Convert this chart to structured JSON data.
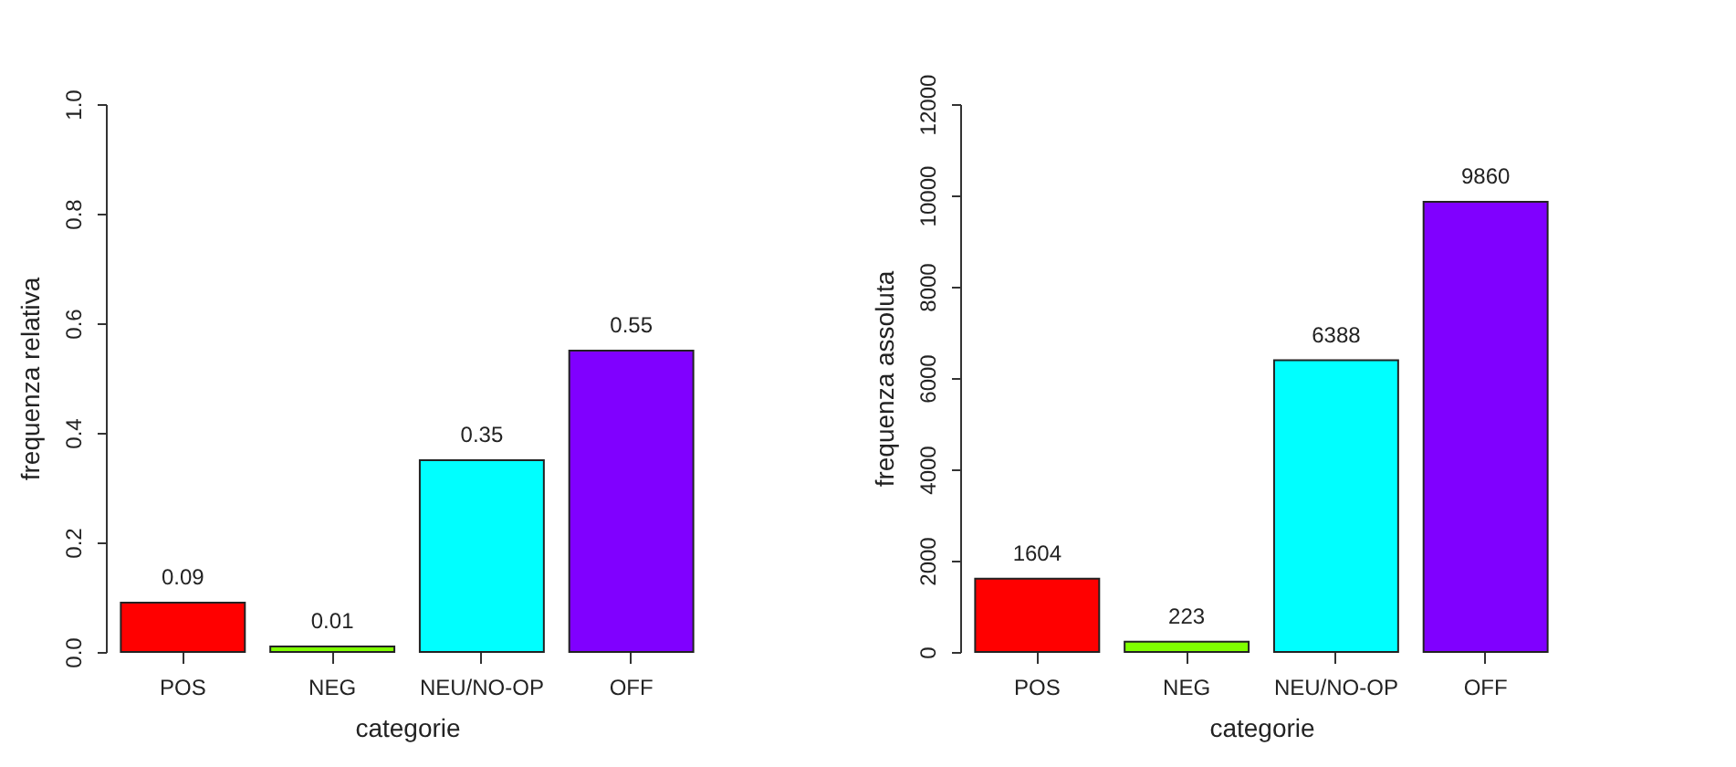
{
  "chart_data": [
    {
      "type": "bar",
      "xlabel": "categorie",
      "ylabel": "frequenza relativa",
      "categories": [
        "POS",
        "NEG",
        "NEU/NO-OP",
        "OFF"
      ],
      "values": [
        0.09,
        0.01,
        0.35,
        0.55
      ],
      "colors": [
        "#ff0000",
        "#7fff00",
        "#00ffff",
        "#8000ff"
      ],
      "ylim": [
        0,
        1
      ],
      "yticks": [
        {
          "value": 0,
          "label": "0.0"
        },
        {
          "value": 0.2,
          "label": "0.2"
        },
        {
          "value": 0.4,
          "label": "0.4"
        },
        {
          "value": 0.6,
          "label": "0.6"
        },
        {
          "value": 0.8,
          "label": "0.8"
        },
        {
          "value": 1,
          "label": "1.0"
        }
      ],
      "data_labels": true
    },
    {
      "type": "bar",
      "xlabel": "categorie",
      "ylabel": "frequenza assoluta",
      "categories": [
        "POS",
        "NEG",
        "NEU/NO-OP",
        "OFF"
      ],
      "values": [
        1604,
        223,
        6388,
        9860
      ],
      "colors": [
        "#ff0000",
        "#7fff00",
        "#00ffff",
        "#8000ff"
      ],
      "ylim": [
        0,
        12000
      ],
      "yticks": [
        0,
        2000,
        4000,
        6000,
        8000,
        10000,
        12000
      ],
      "data_labels": true
    }
  ]
}
